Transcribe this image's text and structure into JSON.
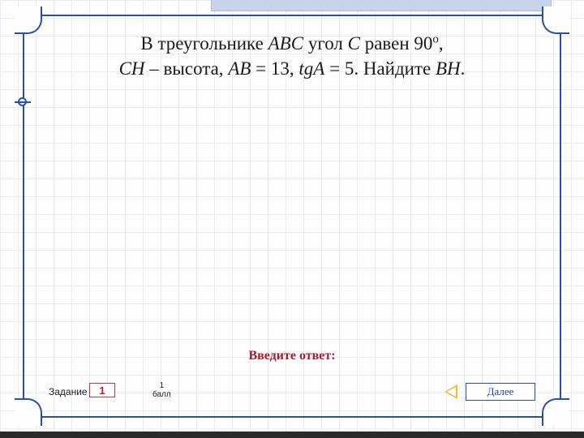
{
  "frame": {
    "border_color": "#2a4fa8",
    "corner_radius": 24
  },
  "topstrip": {
    "color": "#c9d4ea"
  },
  "problem": {
    "line1_a": "В треугольнике ",
    "line1_b": "ABC",
    "line1_c": " угол ",
    "line1_d": "C",
    "line1_e": " равен 90",
    "line1_sup": "o",
    "line1_f": ",",
    "line2_a": "CH",
    "line2_b": " – высота, ",
    "line2_c": "AB",
    "line2_d": " = 13, ",
    "line2_e": "tgA",
    "line2_f": " = 5. Найдите ",
    "line2_g": "BH",
    "line2_h": ".",
    "font_size": 23,
    "color": "#1a1a1a"
  },
  "prompt": {
    "text": "Введите ответ:",
    "color": "#a02030",
    "font_size": 16
  },
  "footer": {
    "task_label": "Задание",
    "task_number": "1",
    "points_value": "1",
    "points_unit": "балл",
    "next_label": "Далее",
    "task_color": "#c02020",
    "next_color": "#2040a0",
    "arrow_color": "#f6b83c"
  },
  "grid": {
    "bg": "#fdfdfd",
    "line": "#e8edf5",
    "cell": 22
  }
}
